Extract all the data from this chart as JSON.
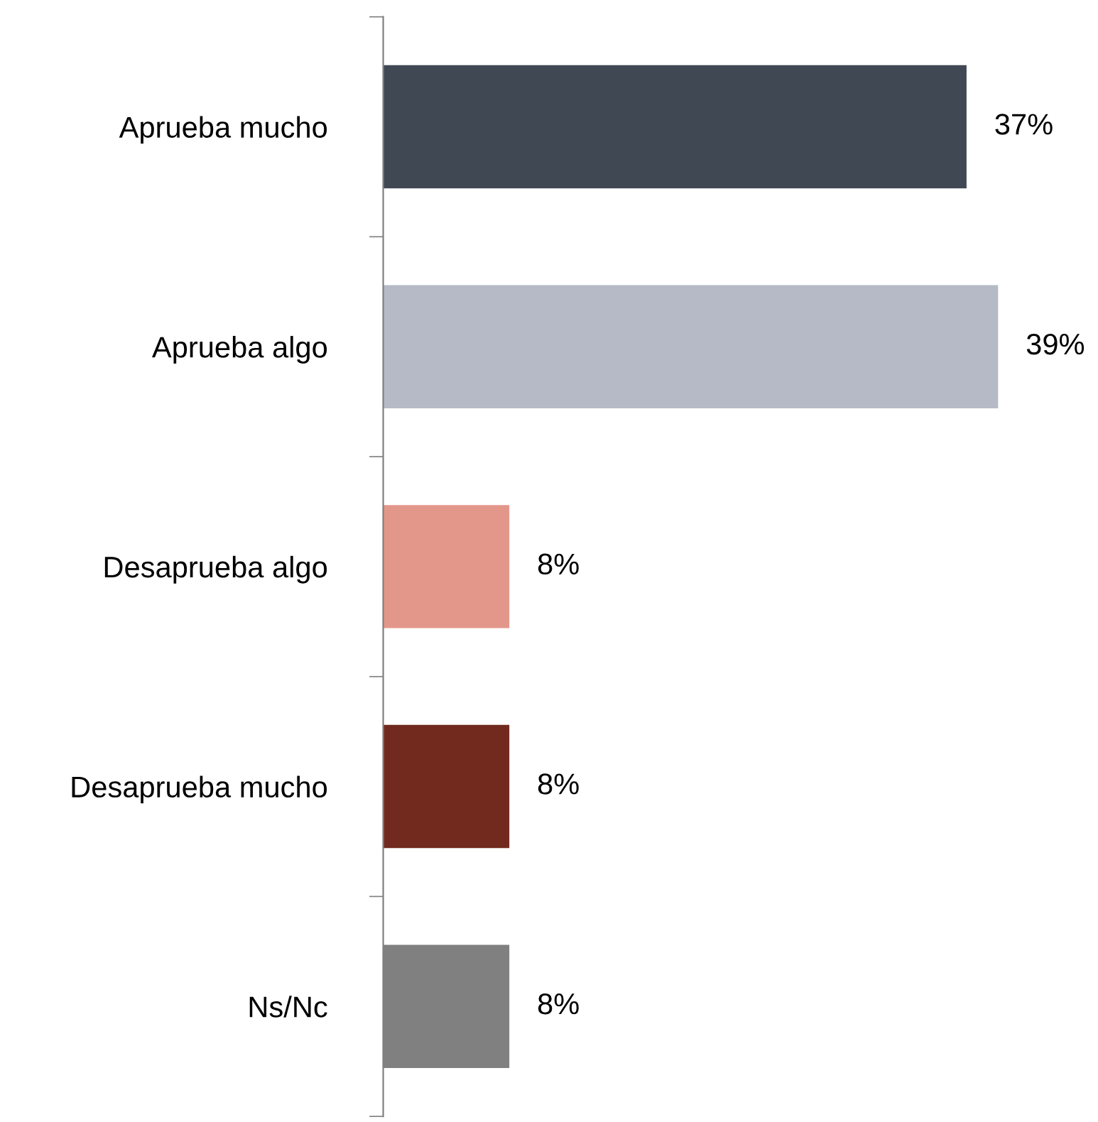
{
  "chart_data": {
    "type": "bar",
    "orientation": "horizontal",
    "categories": [
      "Aprueba mucho",
      "Aprueba algo",
      "Desaprueba algo",
      "Desaprueba mucho",
      "Ns/Nc"
    ],
    "values": [
      37,
      39,
      8,
      8,
      8
    ],
    "colors": [
      "#404854",
      "#b5bac6",
      "#e3978a",
      "#722a1e",
      "#808080"
    ],
    "value_labels": [
      "37%",
      "39%",
      "8%",
      "8%",
      "8%"
    ],
    "grid": false,
    "legend": false,
    "tick_labels": "y"
  }
}
